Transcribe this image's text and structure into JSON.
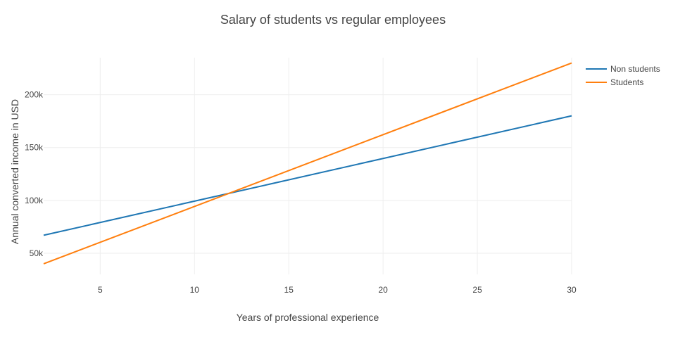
{
  "chart_data": {
    "type": "line",
    "title": "Salary of students vs regular employees",
    "xlabel": "Years of professional experience",
    "ylabel": "Annual converted income in USD",
    "xlim": [
      2,
      30
    ],
    "ylim": [
      30000,
      235000
    ],
    "x_ticks": [
      5,
      10,
      15,
      20,
      25,
      30
    ],
    "x_tick_labels": [
      "5",
      "10",
      "15",
      "20",
      "25",
      "30"
    ],
    "y_ticks": [
      50000,
      100000,
      150000,
      200000
    ],
    "y_tick_labels": [
      "50k",
      "100k",
      "150k",
      "200k"
    ],
    "grid": true,
    "legend_position": "top-right",
    "series": [
      {
        "name": "Non students",
        "color": "#1f77b4",
        "x": [
          2,
          30
        ],
        "y": [
          67000,
          180000
        ]
      },
      {
        "name": "Students",
        "color": "#ff7f0e",
        "x": [
          2,
          30
        ],
        "y": [
          40000,
          230000
        ]
      }
    ]
  }
}
